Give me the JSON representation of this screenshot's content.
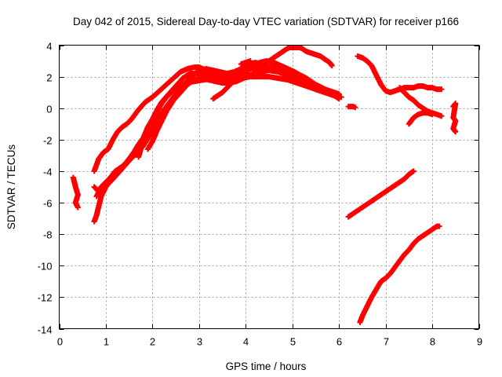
{
  "chart_data": {
    "type": "scatter",
    "title": "Day 042 of 2015, Sidereal Day-to-day VTEC variation (SDTVAR) for receiver p166",
    "xlabel": "GPS time / hours",
    "ylabel": "SDTVAR / TECUs",
    "xlim": [
      0,
      9
    ],
    "ylim": [
      -14,
      4
    ],
    "xticks": [
      "0",
      "1",
      "2",
      "3",
      "4",
      "5",
      "6",
      "7",
      "8",
      "9"
    ],
    "yticks": [
      "-14",
      "-12",
      "-10",
      "-8",
      "-6",
      "-4",
      "-2",
      "0",
      "2",
      "4"
    ],
    "grid": true,
    "legend": "none",
    "marker": "plus",
    "color": "#ff0000",
    "series": [
      {
        "values": [
          [
            0.3,
            -4.4
          ],
          [
            0.35,
            -5.0
          ],
          [
            0.4,
            -5.5
          ],
          [
            0.35,
            -6.0
          ],
          [
            0.4,
            -6.3
          ]
        ]
      },
      {
        "values": [
          [
            0.75,
            -7.2
          ],
          [
            0.8,
            -6.8
          ],
          [
            0.85,
            -6.2
          ],
          [
            0.9,
            -5.6
          ],
          [
            1.0,
            -5.0
          ],
          [
            1.1,
            -4.6
          ],
          [
            1.2,
            -4.3
          ],
          [
            1.3,
            -4.0
          ],
          [
            1.4,
            -3.6
          ],
          [
            1.5,
            -3.2
          ],
          [
            1.6,
            -2.8
          ],
          [
            1.7,
            -2.3
          ],
          [
            1.8,
            -1.9
          ],
          [
            1.9,
            -1.2
          ],
          [
            2.0,
            -0.7
          ],
          [
            2.1,
            -0.2
          ],
          [
            2.2,
            0.3
          ],
          [
            2.3,
            0.7
          ],
          [
            2.4,
            1.0
          ],
          [
            2.5,
            1.3
          ],
          [
            2.6,
            1.5
          ],
          [
            2.7,
            1.6
          ],
          [
            2.9,
            1.7
          ],
          [
            3.1,
            1.8
          ],
          [
            3.3,
            1.9
          ],
          [
            3.5,
            2.0
          ],
          [
            3.7,
            2.0
          ],
          [
            3.9,
            1.9
          ],
          [
            4.1,
            2.0
          ],
          [
            4.3,
            2.0
          ],
          [
            4.5,
            2.0
          ],
          [
            4.7,
            1.9
          ],
          [
            4.9,
            1.8
          ],
          [
            5.1,
            1.6
          ],
          [
            5.3,
            1.4
          ],
          [
            5.5,
            1.2
          ],
          [
            5.7,
            1.0
          ],
          [
            5.9,
            0.8
          ],
          [
            6.0,
            0.6
          ]
        ]
      },
      {
        "values": [
          [
            0.75,
            -4.0
          ],
          [
            0.85,
            -3.2
          ],
          [
            0.95,
            -2.8
          ],
          [
            1.05,
            -2.6
          ],
          [
            1.15,
            -2.0
          ],
          [
            1.25,
            -1.5
          ],
          [
            1.35,
            -1.2
          ],
          [
            1.45,
            -1.0
          ],
          [
            1.55,
            -0.7
          ],
          [
            1.7,
            -0.1
          ],
          [
            1.85,
            0.4
          ],
          [
            2.0,
            0.7
          ],
          [
            2.15,
            1.1
          ],
          [
            2.3,
            1.5
          ],
          [
            2.45,
            1.9
          ],
          [
            2.6,
            2.3
          ],
          [
            2.75,
            2.5
          ],
          [
            2.9,
            2.6
          ],
          [
            3.0,
            2.6
          ],
          [
            3.15,
            2.4
          ],
          [
            3.3,
            2.2
          ],
          [
            3.5,
            2.1
          ],
          [
            3.7,
            2.2
          ],
          [
            3.9,
            2.3
          ],
          [
            4.1,
            2.5
          ],
          [
            4.3,
            2.6
          ],
          [
            4.5,
            2.6
          ],
          [
            4.7,
            2.5
          ],
          [
            4.9,
            2.4
          ],
          [
            5.1,
            2.2
          ],
          [
            5.3,
            1.9
          ],
          [
            5.5,
            1.5
          ],
          [
            5.7,
            1.2
          ],
          [
            5.9,
            0.9
          ],
          [
            6.0,
            0.7
          ]
        ]
      },
      {
        "values": [
          [
            0.75,
            -5.0
          ],
          [
            0.85,
            -5.3
          ],
          [
            0.95,
            -5.1
          ],
          [
            1.05,
            -4.8
          ],
          [
            1.15,
            -4.5
          ],
          [
            1.3,
            -4.0
          ],
          [
            1.45,
            -3.5
          ],
          [
            1.6,
            -3.0
          ],
          [
            1.75,
            -2.3
          ],
          [
            1.9,
            -1.6
          ],
          [
            2.05,
            -0.9
          ],
          [
            2.2,
            -0.3
          ],
          [
            2.35,
            0.3
          ],
          [
            2.5,
            0.9
          ],
          [
            2.65,
            1.4
          ],
          [
            2.8,
            1.9
          ],
          [
            2.95,
            2.3
          ],
          [
            3.1,
            2.4
          ],
          [
            3.25,
            2.3
          ],
          [
            3.4,
            2.2
          ],
          [
            3.55,
            2.1
          ],
          [
            3.7,
            2.1
          ],
          [
            3.85,
            2.2
          ],
          [
            4.0,
            2.4
          ],
          [
            4.15,
            2.6
          ],
          [
            4.3,
            2.9
          ],
          [
            4.45,
            3.0
          ],
          [
            4.6,
            2.9
          ],
          [
            4.75,
            2.7
          ],
          [
            4.9,
            2.5
          ],
          [
            5.05,
            2.3
          ],
          [
            5.2,
            2.0
          ],
          [
            5.4,
            1.6
          ],
          [
            5.6,
            1.2
          ],
          [
            5.8,
            0.9
          ],
          [
            6.0,
            0.7
          ]
        ]
      },
      {
        "values": [
          [
            0.8,
            -5.6
          ],
          [
            0.9,
            -5.0
          ],
          [
            1.0,
            -4.7
          ],
          [
            1.1,
            -4.4
          ],
          [
            1.2,
            -4.0
          ],
          [
            1.35,
            -3.7
          ],
          [
            1.5,
            -3.3
          ],
          [
            1.65,
            -2.9
          ],
          [
            1.8,
            -2.4
          ],
          [
            1.95,
            -1.7
          ],
          [
            2.1,
            -1.0
          ],
          [
            2.25,
            -0.3
          ],
          [
            2.4,
            0.4
          ],
          [
            2.55,
            1.0
          ],
          [
            2.7,
            1.5
          ],
          [
            2.85,
            2.0
          ],
          [
            3.0,
            2.4
          ],
          [
            3.15,
            2.5
          ],
          [
            3.3,
            2.4
          ],
          [
            3.45,
            2.3
          ],
          [
            3.6,
            2.2
          ],
          [
            3.75,
            2.3
          ],
          [
            3.9,
            2.5
          ],
          [
            4.05,
            2.7
          ],
          [
            4.2,
            2.9
          ],
          [
            4.35,
            2.8
          ],
          [
            4.5,
            2.6
          ],
          [
            4.65,
            2.4
          ],
          [
            4.8,
            2.2
          ],
          [
            4.95,
            2.0
          ],
          [
            5.1,
            1.8
          ],
          [
            5.3,
            1.5
          ],
          [
            5.5,
            1.2
          ],
          [
            5.7,
            1.0
          ],
          [
            5.9,
            0.8
          ],
          [
            6.05,
            0.7
          ]
        ]
      },
      {
        "values": [
          [
            1.7,
            -3.1
          ],
          [
            1.75,
            -2.6
          ],
          [
            1.8,
            -2.0
          ],
          [
            1.9,
            -1.3
          ],
          [
            2.0,
            -0.7
          ],
          [
            2.1,
            -0.1
          ],
          [
            2.2,
            0.4
          ],
          [
            2.35,
            0.9
          ],
          [
            2.5,
            1.4
          ],
          [
            2.65,
            1.9
          ],
          [
            2.8,
            2.2
          ],
          [
            2.95,
            2.2
          ],
          [
            3.1,
            2.1
          ],
          [
            3.3,
            2.0
          ],
          [
            3.5,
            1.9
          ],
          [
            3.7,
            1.9
          ],
          [
            3.9,
            2.0
          ],
          [
            4.1,
            2.1
          ],
          [
            4.3,
            2.3
          ],
          [
            4.5,
            2.4
          ],
          [
            4.7,
            2.3
          ],
          [
            4.9,
            2.1
          ],
          [
            5.1,
            1.9
          ],
          [
            5.3,
            1.6
          ],
          [
            5.5,
            1.3
          ],
          [
            5.7,
            1.1
          ],
          [
            5.9,
            0.9
          ],
          [
            6.0,
            0.8
          ]
        ]
      },
      {
        "values": [
          [
            1.9,
            -2.6
          ],
          [
            2.0,
            -2.1
          ],
          [
            2.1,
            -1.4
          ],
          [
            2.2,
            -0.8
          ],
          [
            2.3,
            -0.2
          ],
          [
            2.45,
            0.5
          ],
          [
            2.6,
            1.0
          ],
          [
            2.75,
            1.5
          ],
          [
            2.9,
            1.8
          ],
          [
            3.05,
            1.9
          ],
          [
            3.2,
            1.8
          ],
          [
            3.35,
            1.7
          ],
          [
            3.5,
            1.6
          ],
          [
            3.65,
            1.6
          ],
          [
            3.8,
            1.7
          ],
          [
            3.95,
            1.9
          ],
          [
            4.1,
            2.1
          ],
          [
            4.25,
            2.3
          ],
          [
            4.4,
            2.5
          ],
          [
            4.55,
            2.6
          ],
          [
            4.7,
            2.5
          ],
          [
            4.85,
            2.3
          ],
          [
            5.0,
            2.1
          ],
          [
            5.15,
            1.9
          ],
          [
            5.3,
            1.7
          ],
          [
            5.5,
            1.4
          ],
          [
            5.7,
            1.2
          ],
          [
            5.9,
            1.0
          ],
          [
            6.0,
            0.9
          ]
        ]
      },
      {
        "values": [
          [
            3.3,
            0.6
          ],
          [
            3.4,
            0.8
          ],
          [
            3.5,
            1.0
          ],
          [
            3.6,
            1.3
          ],
          [
            3.7,
            1.6
          ],
          [
            3.8,
            1.9
          ],
          [
            3.9,
            2.1
          ],
          [
            4.0,
            2.3
          ],
          [
            4.1,
            2.5
          ],
          [
            4.2,
            2.6
          ],
          [
            4.35,
            2.7
          ],
          [
            4.5,
            3.0
          ],
          [
            4.6,
            3.2
          ],
          [
            4.7,
            3.4
          ],
          [
            4.8,
            3.6
          ],
          [
            4.9,
            3.8
          ],
          [
            5.0,
            3.9
          ],
          [
            5.1,
            3.9
          ],
          [
            5.2,
            3.8
          ],
          [
            5.3,
            3.6
          ],
          [
            5.4,
            3.5
          ],
          [
            5.5,
            3.4
          ],
          [
            5.6,
            3.3
          ],
          [
            5.7,
            3.1
          ],
          [
            5.8,
            2.9
          ],
          [
            5.85,
            2.7
          ]
        ]
      },
      {
        "values": [
          [
            3.9,
            2.8
          ],
          [
            4.0,
            2.9
          ],
          [
            4.1,
            3.0
          ]
        ]
      },
      {
        "values": [
          [
            6.2,
            0.1
          ],
          [
            6.3,
            0.1
          ],
          [
            6.35,
            0.05
          ]
        ]
      },
      {
        "values": [
          [
            6.4,
            3.3
          ],
          [
            6.5,
            3.2
          ],
          [
            6.6,
            3.0
          ],
          [
            6.7,
            2.7
          ],
          [
            6.75,
            2.4
          ],
          [
            6.8,
            2.1
          ],
          [
            6.85,
            1.8
          ],
          [
            6.9,
            1.5
          ],
          [
            6.95,
            1.3
          ],
          [
            7.0,
            1.1
          ],
          [
            7.1,
            1.0
          ],
          [
            7.2,
            1.1
          ],
          [
            7.3,
            1.2
          ],
          [
            7.4,
            1.3
          ],
          [
            7.5,
            1.3
          ],
          [
            7.6,
            1.3
          ],
          [
            7.7,
            1.4
          ],
          [
            7.8,
            1.4
          ],
          [
            7.9,
            1.3
          ],
          [
            8.0,
            1.3
          ],
          [
            8.1,
            1.2
          ],
          [
            8.2,
            1.2
          ]
        ]
      },
      {
        "values": [
          [
            7.3,
            1.3
          ],
          [
            7.4,
            1.0
          ],
          [
            7.5,
            0.7
          ],
          [
            7.6,
            0.5
          ],
          [
            7.7,
            0.2
          ],
          [
            7.8,
            0.0
          ],
          [
            7.9,
            -0.2
          ],
          [
            8.0,
            -0.3
          ],
          [
            8.1,
            -0.4
          ],
          [
            8.2,
            -0.5
          ]
        ]
      },
      {
        "values": [
          [
            7.5,
            -1.0
          ],
          [
            7.55,
            -0.8
          ],
          [
            7.6,
            -0.6
          ],
          [
            7.7,
            -0.4
          ],
          [
            7.8,
            -0.3
          ],
          [
            7.9,
            -0.3
          ],
          [
            8.0,
            -0.4
          ]
        ]
      },
      {
        "values": [
          [
            8.45,
            0.1
          ],
          [
            8.5,
            0.3
          ],
          [
            8.45,
            -0.6
          ],
          [
            8.5,
            -0.8
          ],
          [
            8.45,
            -1.3
          ],
          [
            8.5,
            -1.5
          ]
        ]
      },
      {
        "values": [
          [
            6.2,
            -6.9
          ],
          [
            6.35,
            -6.6
          ],
          [
            6.5,
            -6.3
          ],
          [
            6.65,
            -6.0
          ],
          [
            6.8,
            -5.7
          ],
          [
            6.95,
            -5.4
          ],
          [
            7.1,
            -5.1
          ],
          [
            7.25,
            -4.8
          ],
          [
            7.4,
            -4.5
          ],
          [
            7.5,
            -4.2
          ],
          [
            7.6,
            -4.0
          ]
        ]
      },
      {
        "values": [
          [
            6.45,
            -13.6
          ],
          [
            6.5,
            -13.2
          ],
          [
            6.6,
            -12.6
          ],
          [
            6.7,
            -12.0
          ],
          [
            6.8,
            -11.5
          ],
          [
            6.9,
            -11.0
          ],
          [
            7.0,
            -10.8
          ],
          [
            7.1,
            -10.5
          ],
          [
            7.2,
            -10.1
          ],
          [
            7.3,
            -9.7
          ],
          [
            7.4,
            -9.3
          ],
          [
            7.5,
            -9.0
          ],
          [
            7.6,
            -8.6
          ],
          [
            7.7,
            -8.3
          ],
          [
            7.8,
            -8.1
          ],
          [
            7.9,
            -7.9
          ],
          [
            8.0,
            -7.7
          ],
          [
            8.1,
            -7.5
          ],
          [
            8.15,
            -7.5
          ]
        ]
      }
    ]
  }
}
